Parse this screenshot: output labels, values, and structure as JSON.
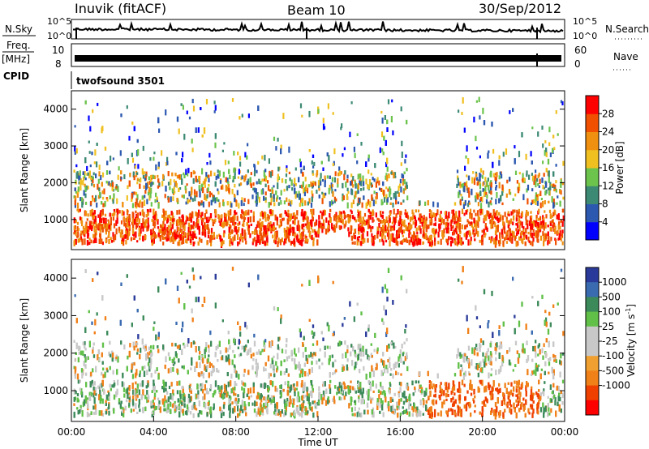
{
  "header": {
    "station": "Inuvik (fitACF)",
    "beam": "Beam 10",
    "date": "30/Sep/2012"
  },
  "summary_panels": {
    "nsky_label": "N.Sky",
    "nsky_ticks": [
      "10^5",
      "10^0"
    ],
    "nsearch_label": "N.Search",
    "nsearch_ticks": [
      "10^5",
      "10^0"
    ],
    "freq_label_line1": "Freq.",
    "freq_label_line2": "[MHz]",
    "freq_ticks": [
      "10",
      "8"
    ],
    "nave_label": "Nave",
    "nave_ticks": [
      "60",
      "0"
    ],
    "cpid_label": "CPID",
    "cpid_value": "twofsound 3501"
  },
  "time_axis": {
    "label": "Time UT",
    "ticks": [
      "00:00",
      "04:00",
      "08:00",
      "12:00",
      "16:00",
      "20:00",
      "00:00"
    ]
  },
  "chart_data": [
    {
      "type": "heatmap",
      "name": "power",
      "ylabel": "Slant Range [km]",
      "yticks": [
        "1000",
        "2000",
        "3000",
        "4000"
      ],
      "ylim": [
        180,
        4500
      ],
      "xlim": [
        "00:00",
        "24:00"
      ],
      "colorbar_label": "Power [dB]",
      "colorbar_ticks": [
        "4",
        "8",
        "12",
        "16",
        "20",
        "24",
        "28"
      ],
      "colors": [
        "#0000ff",
        "#2c58b0",
        "#3c8a74",
        "#6cc44c",
        "#f0c020",
        "#f09010",
        "#f05000",
        "#ff0000"
      ]
    },
    {
      "type": "heatmap",
      "name": "velocity",
      "ylabel": "Slant Range [km]",
      "yticks": [
        "1000",
        "2000",
        "3000",
        "4000"
      ],
      "ylim": [
        180,
        4500
      ],
      "xlim": [
        "00:00",
        "24:00"
      ],
      "colorbar_label": "Velocity [m s",
      "colorbar_label_sup": "-1",
      "colorbar_label_end": "]",
      "colorbar_ticks": [
        "1000",
        "500",
        "100",
        "25",
        "-25",
        "-100",
        "-500",
        "-1000"
      ],
      "colors": [
        "#2a3a9a",
        "#3a6ab0",
        "#3c8a5a",
        "#60c048",
        "#c8c8c8",
        "#c8c8c8",
        "#f0a030",
        "#f08018",
        "#f04000",
        "#ff0000"
      ]
    }
  ]
}
